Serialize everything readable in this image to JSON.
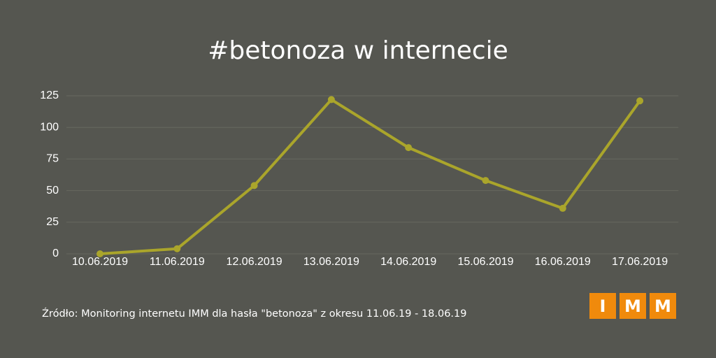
{
  "chart_data": {
    "type": "line",
    "title": "#betonoza w internecie",
    "categories": [
      "10.06.2019",
      "11.06.2019",
      "12.06.2019",
      "13.06.2019",
      "14.06.2019",
      "15.06.2019",
      "16.06.2019",
      "17.06.2019"
    ],
    "values": [
      0,
      4,
      54,
      122,
      84,
      58,
      36,
      121
    ],
    "color": "#aaa52b",
    "ylim": [
      0,
      125
    ],
    "yticks": [
      0,
      25,
      50,
      75,
      100,
      125
    ],
    "grid": true,
    "source": "Źródło: Monitoring internetu IMM dla hasła \"betonoza\" z okresu 11.06.19 - 18.06.19",
    "logo": [
      "I",
      "M",
      "M"
    ]
  }
}
